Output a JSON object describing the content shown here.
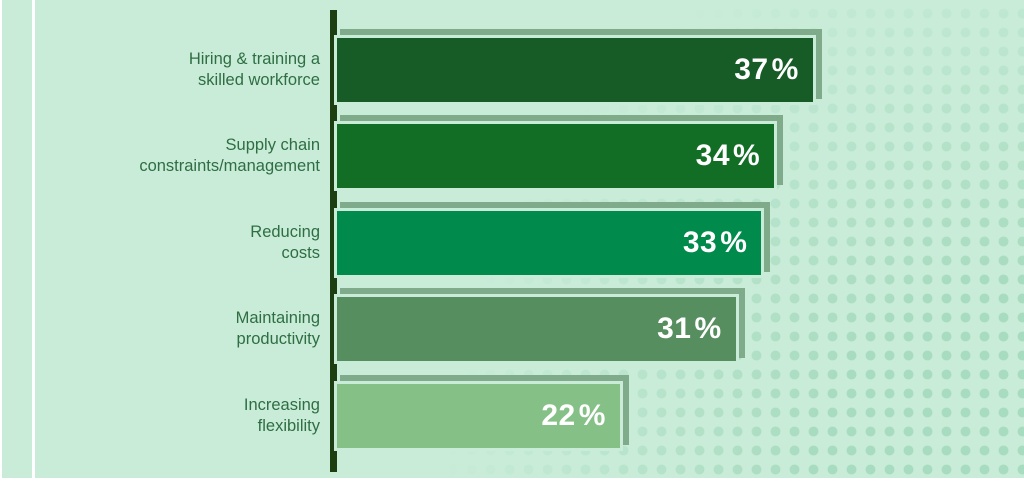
{
  "chart_data": {
    "type": "bar",
    "orientation": "horizontal",
    "title": "",
    "xlabel": "",
    "ylabel": "",
    "unit": "%",
    "xlim": [
      0,
      53
    ],
    "grid": false,
    "legend": false,
    "categories": [
      "Hiring & training a skilled workforce",
      "Supply chain constraints/management",
      "Reducing costs",
      "Maintaining productivity",
      "Increasing flexibility"
    ],
    "values": [
      37,
      34,
      33,
      31,
      22
    ],
    "bars": [
      {
        "label_line1": "Hiring & training a",
        "label_line2": "skilled workforce",
        "value": 37,
        "color": "#175c26"
      },
      {
        "label_line1": "Supply chain",
        "label_line2": "constraints/management",
        "value": 34,
        "color": "#116e24"
      },
      {
        "label_line1": "Reducing",
        "label_line2": "costs",
        "value": 33,
        "color": "#008a4b"
      },
      {
        "label_line1": "Maintaining",
        "label_line2": "productivity",
        "value": 31,
        "color": "#568e60"
      },
      {
        "label_line1": "Increasing",
        "label_line2": "flexibility",
        "value": 22,
        "color": "#85c087"
      }
    ]
  },
  "colors": {
    "background": "#c9ecd9",
    "dot_light": "#dff6ea",
    "dot_dark": "#a8dcc0",
    "axis_line": "#1d3e10",
    "category_text": "#2e6e42",
    "bar_shadow": "#7fab8b",
    "value_text": "#ffffff",
    "frame_lines": "#ffffff"
  }
}
